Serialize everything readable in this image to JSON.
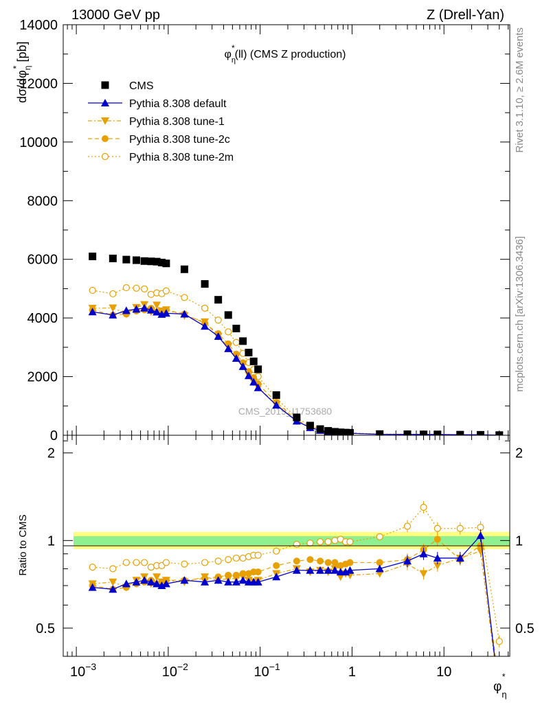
{
  "header": {
    "left": "13000 GeV pp",
    "right": "Z (Drell-Yan)"
  },
  "side_labels": {
    "rivet": "Rivet 3.1.10, ≥ 2.6M events",
    "mcplots": "mcplots.cern.ch [arXiv:1306.3436]"
  },
  "chart_data": {
    "type": "scatter",
    "title": "φ*η(ll) (CMS Z production)",
    "watermark": "CMS_2019_I1753680",
    "xlabel": "φ*η",
    "xscale": "log",
    "xlim": [
      0.00072,
      52
    ],
    "x_ticks": [
      {
        "v": 0.001,
        "base": "10",
        "exp": "−3"
      },
      {
        "v": 0.01,
        "base": "10",
        "exp": "−2"
      },
      {
        "v": 0.1,
        "base": "10",
        "exp": "−1"
      },
      {
        "v": 1,
        "base": "1",
        "exp": ""
      },
      {
        "v": 10,
        "base": "10",
        "exp": ""
      }
    ],
    "top": {
      "ylabel": "dσ/dφ*η [pb]",
      "ylim": [
        0,
        14000
      ],
      "y_ticks": [
        "0",
        "2000",
        "4000",
        "6000",
        "8000",
        "10000",
        "12000",
        "14000"
      ]
    },
    "ratio": {
      "ylabel": "Ratio to CMS",
      "ylim": [
        0.4,
        2.3
      ],
      "y_ticks": [
        "0.5",
        "1",
        "2"
      ]
    },
    "x": [
      0.0015,
      0.0025,
      0.0035,
      0.0045,
      0.0055,
      0.0065,
      0.0075,
      0.0085,
      0.0095,
      0.015,
      0.025,
      0.035,
      0.045,
      0.055,
      0.065,
      0.075,
      0.085,
      0.095,
      0.15,
      0.25,
      0.35,
      0.45,
      0.55,
      0.65,
      0.75,
      0.85,
      0.95,
      2,
      4,
      6,
      8.5,
      15,
      25,
      40
    ],
    "cms": [
      6100,
      6030,
      5990,
      5970,
      5940,
      5930,
      5920,
      5890,
      5860,
      5660,
      5160,
      4620,
      4100,
      3640,
      3210,
      2820,
      2520,
      2250,
      1370,
      610,
      330,
      210,
      150,
      118,
      100,
      90,
      85,
      40,
      35,
      30,
      28,
      20,
      15,
      5
    ],
    "legend": [
      "CMS",
      "Pythia 8.308 default",
      "Pythia 8.308 tune-1",
      "Pythia 8.308 tune-2c",
      "Pythia 8.308 tune-2m"
    ],
    "colors": {
      "cms": "#000000",
      "default": "#0000cc",
      "tunes": "#e8a000",
      "band_inner": "#8ef08e",
      "band_outer": "#ffff80"
    },
    "series": [
      {
        "name": "Pythia 8.308 default",
        "style": "default",
        "ratio": [
          0.69,
          0.68,
          0.71,
          0.72,
          0.73,
          0.72,
          0.71,
          0.7,
          0.71,
          0.73,
          0.72,
          0.73,
          0.72,
          0.72,
          0.73,
          0.72,
          0.72,
          0.72,
          0.75,
          0.79,
          0.79,
          0.79,
          0.79,
          0.79,
          0.78,
          0.78,
          0.79,
          0.8,
          0.85,
          0.9,
          0.87,
          0.87,
          1.04,
          0.29
        ]
      },
      {
        "name": "Pythia 8.308 tune-1",
        "style": "tune1",
        "ratio": [
          0.71,
          0.72,
          0.69,
          0.73,
          0.75,
          0.71,
          0.75,
          0.72,
          0.73,
          0.72,
          0.75,
          0.73,
          0.74,
          0.74,
          0.75,
          0.73,
          0.72,
          0.73,
          0.77,
          0.8,
          0.78,
          0.79,
          0.78,
          0.8,
          0.75,
          0.77,
          0.76,
          0.77,
          0.83,
          0.77,
          0.82,
          0.87,
          0.92,
          0.29
        ]
      },
      {
        "name": "Pythia 8.308 tune-2c",
        "style": "tune2c",
        "ratio": [
          0.7,
          0.68,
          0.69,
          0.71,
          0.72,
          0.73,
          0.71,
          0.72,
          0.73,
          0.73,
          0.74,
          0.75,
          0.76,
          0.76,
          0.77,
          0.77,
          0.78,
          0.78,
          0.82,
          0.85,
          0.86,
          0.85,
          0.84,
          0.84,
          0.82,
          0.83,
          0.84,
          0.84,
          0.86,
          0.93,
          1.01,
          0.86,
          0.96,
          0.32
        ]
      },
      {
        "name": "Pythia 8.308 tune-2m",
        "style": "tune2m",
        "ratio": [
          0.81,
          0.8,
          0.84,
          0.84,
          0.84,
          0.81,
          0.82,
          0.82,
          0.84,
          0.83,
          0.84,
          0.85,
          0.86,
          0.87,
          0.87,
          0.88,
          0.89,
          0.89,
          0.92,
          0.97,
          0.98,
          0.99,
          0.99,
          1.0,
          1.01,
          0.99,
          0.99,
          1.03,
          1.12,
          1.3,
          1.1,
          1.1,
          1.11,
          0.45
        ]
      }
    ]
  }
}
